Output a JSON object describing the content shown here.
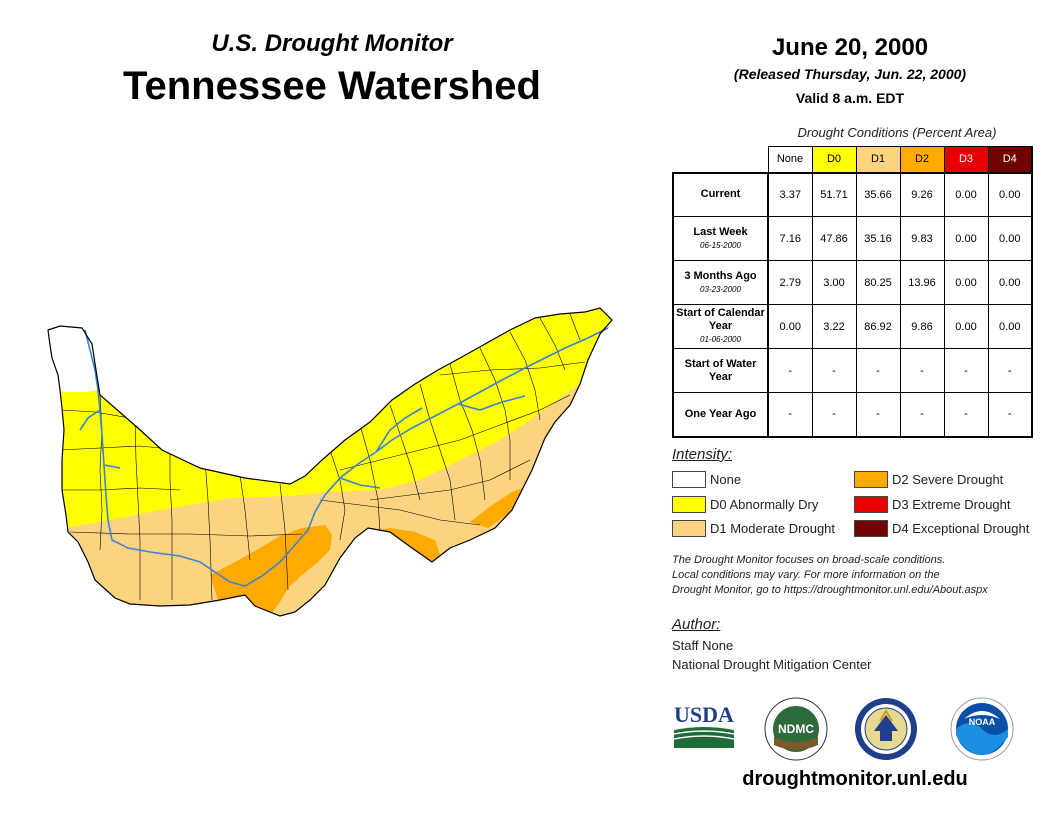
{
  "header": {
    "subtitle": "U.S. Drought Monitor",
    "title": "Tennessee Watershed"
  },
  "info": {
    "date": "June 20, 2000",
    "released": "(Released Thursday, Jun. 22, 2000)",
    "valid": "Valid 8 a.m. EDT"
  },
  "table": {
    "caption": "Drought Conditions (Percent Area)",
    "columns": [
      "None",
      "D0",
      "D1",
      "D2",
      "D3",
      "D4"
    ],
    "column_colors": [
      "#ffffff",
      "#ffff00",
      "#fcd37f",
      "#ffaa00",
      "#e60000",
      "#730000"
    ],
    "rows": [
      {
        "label": "Current",
        "date": "",
        "values": [
          "3.37",
          "51.71",
          "35.66",
          "9.26",
          "0.00",
          "0.00"
        ]
      },
      {
        "label": "Last Week",
        "date": "06-15-2000",
        "values": [
          "7.16",
          "47.86",
          "35.16",
          "9.83",
          "0.00",
          "0.00"
        ]
      },
      {
        "label": "3 Months Ago",
        "date": "03-23-2000",
        "values": [
          "2.79",
          "3.00",
          "80.25",
          "13.96",
          "0.00",
          "0.00"
        ]
      },
      {
        "label": "Start of Calendar Year",
        "date": "01-06-2000",
        "values": [
          "0.00",
          "3.22",
          "86.92",
          "9.86",
          "0.00",
          "0.00"
        ]
      },
      {
        "label": "Start of Water Year",
        "date": "",
        "values": [
          "-",
          "-",
          "-",
          "-",
          "-",
          "-"
        ]
      },
      {
        "label": "One Year Ago",
        "date": "",
        "values": [
          "-",
          "-",
          "-",
          "-",
          "-",
          "-"
        ]
      }
    ]
  },
  "legend": {
    "title": "Intensity:",
    "items": [
      {
        "label": "None",
        "color": "#ffffff"
      },
      {
        "label": "D0 Abnormally Dry",
        "color": "#ffff00"
      },
      {
        "label": "D1 Moderate Drought",
        "color": "#fcd37f"
      },
      {
        "label": "D2 Severe Drought",
        "color": "#ffaa00"
      },
      {
        "label": "D3 Extreme Drought",
        "color": "#e60000"
      },
      {
        "label": "D4 Exceptional Drought",
        "color": "#730000"
      }
    ]
  },
  "disclaimer": {
    "line1": "The Drought Monitor focuses on broad-scale conditions.",
    "line2": "Local conditions may vary. For more information on the",
    "line3": "Drought Monitor, go to https://droughtmonitor.unl.edu/About.aspx"
  },
  "author": {
    "title": "Author:",
    "name": "Staff None",
    "org": "National Drought Mitigation Center"
  },
  "logos": {
    "usda": "USDA",
    "ndmc": "NDMC",
    "noaa": "NOAA"
  },
  "footer": {
    "url": "droughtmonitor.unl.edu"
  },
  "map": {
    "colors": {
      "none": "#ffffff",
      "d0": "#ffff00",
      "d1": "#fcd37f",
      "d2": "#ffaa00",
      "river": "#3b82d6",
      "border": "#000000"
    }
  }
}
